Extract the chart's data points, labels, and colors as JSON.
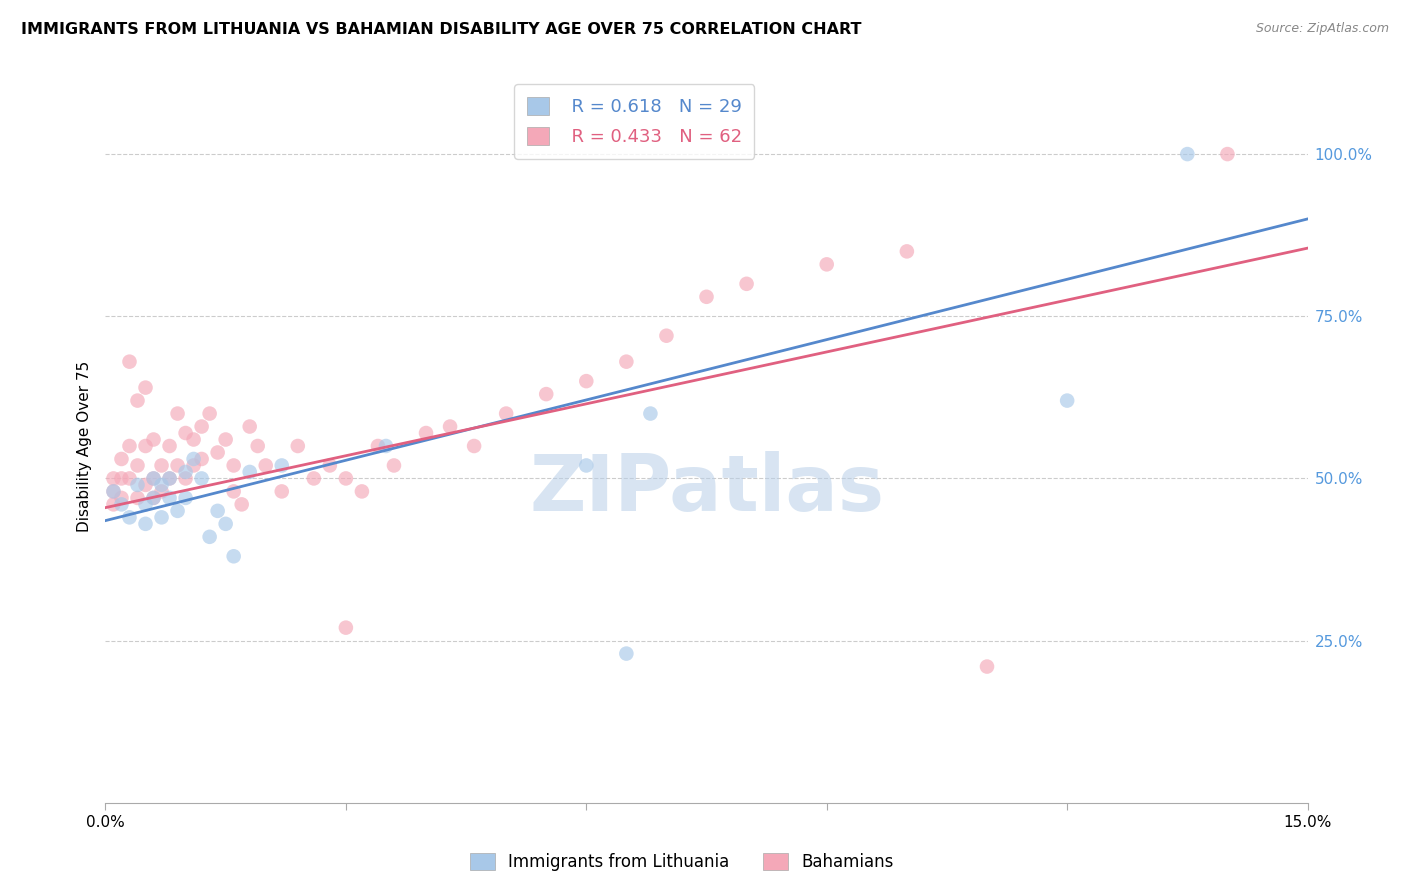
{
  "title": "IMMIGRANTS FROM LITHUANIA VS BAHAMIAN DISABILITY AGE OVER 75 CORRELATION CHART",
  "source": "Source: ZipAtlas.com",
  "ylabel": "Disability Age Over 75",
  "xlim": [
    0.0,
    0.15
  ],
  "ylim": [
    0.0,
    1.1
  ],
  "legend1_label": "Immigrants from Lithuania",
  "legend2_label": "Bahamians",
  "legend_r1": "R = 0.618",
  "legend_n1": "N = 29",
  "legend_r2": "R = 0.433",
  "legend_n2": "N = 62",
  "color_blue": "#a8c8e8",
  "color_pink": "#f4a8b8",
  "line_color_blue": "#5588cc",
  "line_color_pink": "#e06080",
  "watermark": "ZIPatlas",
  "blue_x": [
    0.001,
    0.002,
    0.003,
    0.004,
    0.005,
    0.005,
    0.006,
    0.006,
    0.007,
    0.007,
    0.008,
    0.008,
    0.009,
    0.01,
    0.01,
    0.011,
    0.012,
    0.013,
    0.014,
    0.015,
    0.016,
    0.018,
    0.022,
    0.035,
    0.06,
    0.065,
    0.068,
    0.12,
    0.135
  ],
  "blue_y": [
    0.48,
    0.46,
    0.44,
    0.49,
    0.46,
    0.43,
    0.5,
    0.47,
    0.44,
    0.49,
    0.47,
    0.5,
    0.45,
    0.51,
    0.47,
    0.53,
    0.5,
    0.41,
    0.45,
    0.43,
    0.38,
    0.51,
    0.52,
    0.55,
    0.52,
    0.23,
    0.6,
    0.62,
    1.0
  ],
  "pink_x": [
    0.001,
    0.001,
    0.001,
    0.002,
    0.002,
    0.002,
    0.003,
    0.003,
    0.003,
    0.004,
    0.004,
    0.004,
    0.005,
    0.005,
    0.005,
    0.006,
    0.006,
    0.006,
    0.007,
    0.007,
    0.008,
    0.008,
    0.009,
    0.009,
    0.01,
    0.01,
    0.011,
    0.011,
    0.012,
    0.012,
    0.013,
    0.014,
    0.015,
    0.016,
    0.016,
    0.017,
    0.018,
    0.019,
    0.02,
    0.022,
    0.024,
    0.026,
    0.028,
    0.03,
    0.032,
    0.034,
    0.036,
    0.04,
    0.043,
    0.046,
    0.05,
    0.055,
    0.06,
    0.065,
    0.07,
    0.075,
    0.08,
    0.09,
    0.1,
    0.11,
    0.14,
    0.03
  ],
  "pink_y": [
    0.5,
    0.48,
    0.46,
    0.53,
    0.5,
    0.47,
    0.68,
    0.55,
    0.5,
    0.62,
    0.52,
    0.47,
    0.64,
    0.55,
    0.49,
    0.56,
    0.5,
    0.47,
    0.52,
    0.48,
    0.55,
    0.5,
    0.6,
    0.52,
    0.57,
    0.5,
    0.56,
    0.52,
    0.58,
    0.53,
    0.6,
    0.54,
    0.56,
    0.52,
    0.48,
    0.46,
    0.58,
    0.55,
    0.52,
    0.48,
    0.55,
    0.5,
    0.52,
    0.5,
    0.48,
    0.55,
    0.52,
    0.57,
    0.58,
    0.55,
    0.6,
    0.63,
    0.65,
    0.68,
    0.72,
    0.78,
    0.8,
    0.83,
    0.85,
    0.21,
    1.0,
    0.27
  ],
  "blue_line_x0": 0.0,
  "blue_line_y0": 0.435,
  "blue_line_x1": 0.15,
  "blue_line_y1": 0.9,
  "pink_line_x0": 0.0,
  "pink_line_y0": 0.455,
  "pink_line_x1": 0.15,
  "pink_line_y1": 0.855
}
